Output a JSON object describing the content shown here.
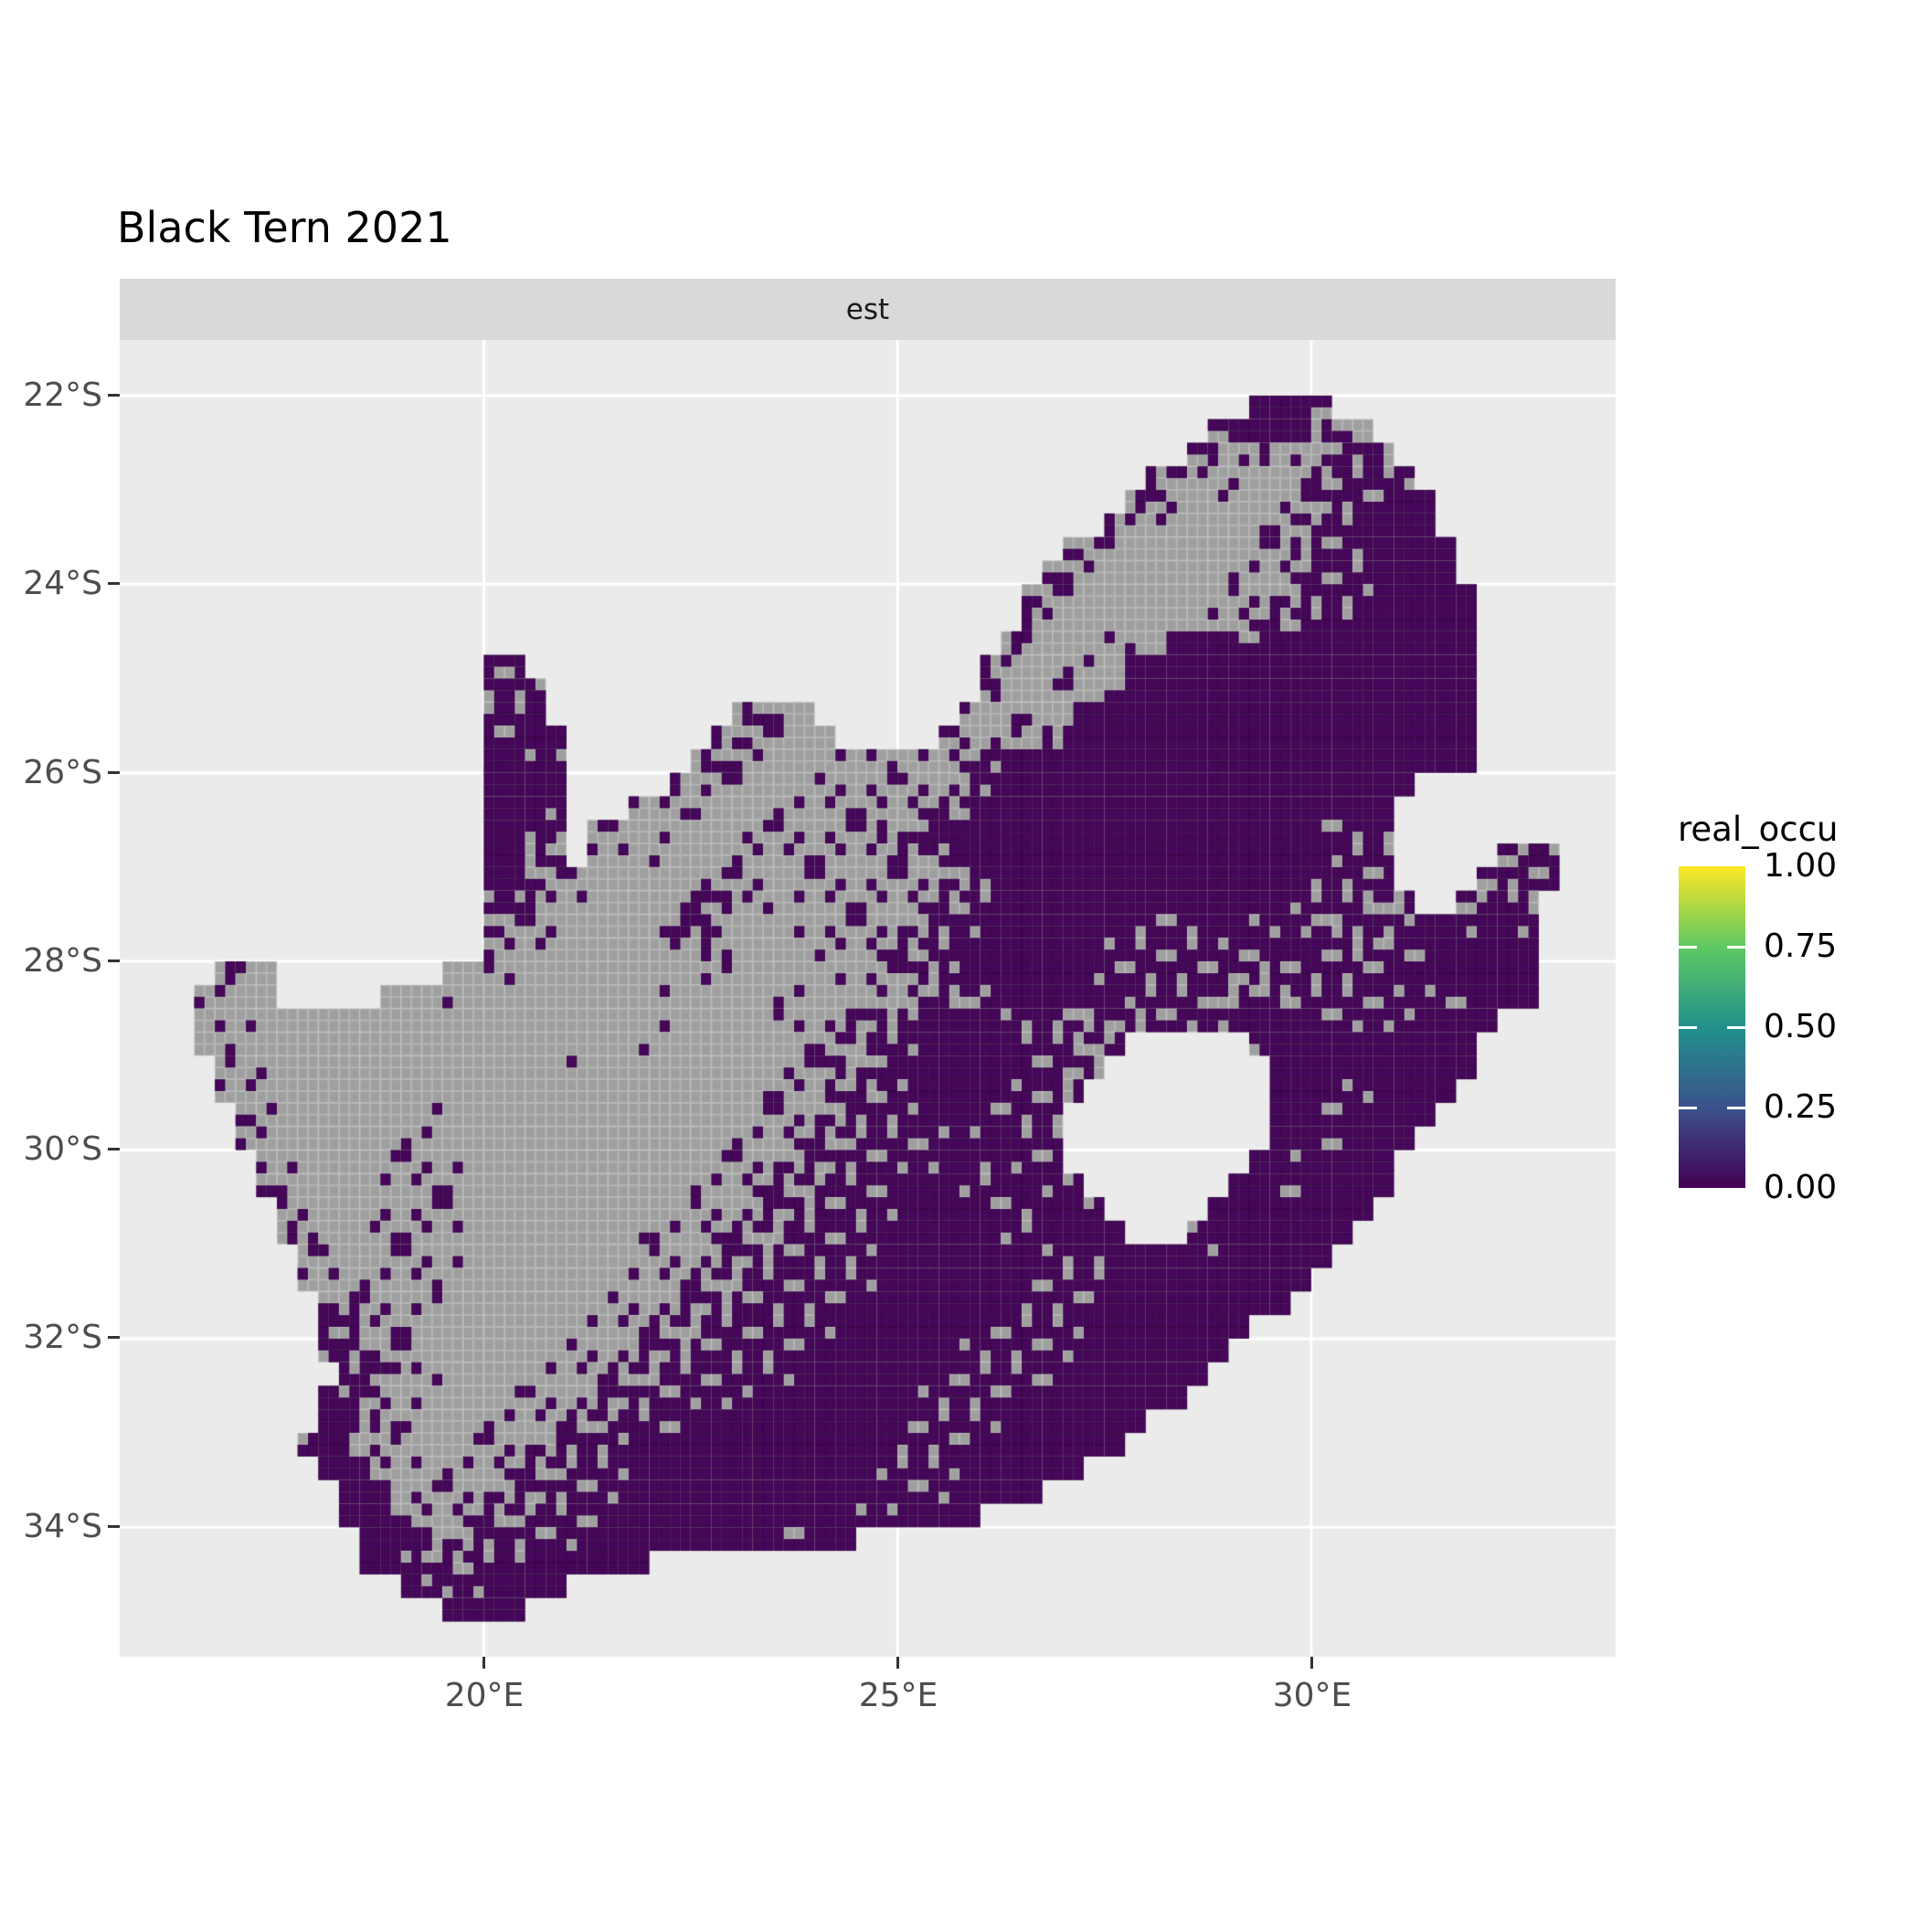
{
  "chart_data": {
    "type": "heatmap",
    "title": "Black Tern 2021",
    "facet_label": "est",
    "axes": {
      "x": {
        "ticks": [
          {
            "label": "20°E",
            "lon": 20
          },
          {
            "label": "25°E",
            "lon": 25
          },
          {
            "label": "30°E",
            "lon": 30
          }
        ]
      },
      "y": {
        "ticks": [
          {
            "label": "22°S",
            "lat": 22
          },
          {
            "label": "24°S",
            "lat": 24
          },
          {
            "label": "26°S",
            "lat": 26
          },
          {
            "label": "28°S",
            "lat": 28
          },
          {
            "label": "30°S",
            "lat": 30
          },
          {
            "label": "32°S",
            "lat": 32
          },
          {
            "label": "34°S",
            "lat": 34
          }
        ]
      }
    },
    "legend": {
      "title": "real_occu",
      "ticks": [
        "1.00",
        "0.75",
        "0.50",
        "0.25",
        "0.00"
      ],
      "colormap": "viridis",
      "range": [
        0,
        1
      ]
    },
    "colors": {
      "panel_bg": "#EBEBEB",
      "strip_bg": "#D9D9D9",
      "grid_line": "#FFFFFF",
      "land_na": "#9F9F9F",
      "land_cell_border": "rgba(255,255,255,0.25)",
      "occupancy_zero": "#46075A",
      "occupancy_cell_border": "rgba(0,0,0,0.16)",
      "axis_text": "#4D4D4D",
      "tick_mark": "#333333",
      "viridis_stops": [
        "#440154",
        "#3B528B",
        "#21918C",
        "#5EC962",
        "#FDE725"
      ]
    },
    "map": {
      "description": "South Africa raster: estimated occupancy. Colored cells = real_occu 0.00 (dark purple); gray = land with no value; Lesotho and Eswatini are holes.",
      "lon_origin": 16.0,
      "lat_origin": 22.0,
      "cell_deg": 0.25,
      "encoding": "per 0.25-deg cell: 0=gray land, 1..4 = number of quarter sub-cells colored purple (occupancy 0.00), water omitted",
      "rows": [
        [
          [
            53,
            "4442"
          ]
        ],
        [
          [
            51,
            "24444220"
          ]
        ],
        [
          [
            50,
            "2212011332"
          ]
        ],
        [
          [
            48,
            "2210100123333"
          ]
        ],
        [
          [
            47,
            "221010011233344"
          ]
        ],
        [
          [
            46,
            "2110000112334444"
          ]
        ],
        [
          [
            44,
            "2110000001123334444"
          ]
        ],
        [
          [
            43,
            "21100000011123334444"
          ]
        ],
        [
          [
            42,
            "2110000000112233344444"
          ]
        ],
        [
          [
            42,
            "2100000001122333444444"
          ]
        ],
        [
          [
            41,
            "21000110444334444444444"
          ]
        ],
        [
          [
            16,
            "33"
          ],
          [
            40,
            "210011044444444444444444"
          ]
        ],
        [
          [
            16,
            "333"
          ],
          [
            40,
            "300110244444444444444444"
          ]
        ],
        [
          [
            16,
            "334"
          ],
          [
            28,
            "2210"
          ],
          [
            39,
            "1011024444444444444444444"
          ]
        ],
        [
          [
            16,
            "3344"
          ],
          [
            27,
            "221100"
          ],
          [
            38,
            "21110244444444444444444444"
          ]
        ],
        [
          [
            16,
            "4433"
          ],
          [
            26,
            "2211000111"
          ],
          [
            36,
            "0112344444444444444444444444"
          ]
        ],
        [
          [
            16,
            "4444"
          ],
          [
            25,
            "21110001111"
          ],
          [
            36,
            "1112344444444444444444444"
          ]
        ],
        [
          [
            16,
            "4443"
          ],
          [
            23,
            "111100011111"
          ],
          [
            35,
            "1122344444444444444444444"
          ]
        ],
        [
          [
            16,
            "4433"
          ],
          [
            21,
            "11010001111"
          ],
          [
            32,
            "1112234444444444444444443333"
          ]
        ],
        [
          [
            16,
            "4422"
          ],
          [
            21,
            "110100011111"
          ],
          [
            33,
            "111223444444444444444444333"
          ],
          [
            65,
            "233"
          ]
        ],
        [
          [
            16,
            "4421100000111101111"
          ],
          [
            35,
            "1112234444444444444443333"
          ],
          [
            64,
            "2333"
          ]
        ],
        [
          [
            16,
            "3321100001331101111"
          ],
          [
            35,
            "1122334444444444444433322"
          ],
          [
            60,
            "2"
          ],
          [
            63,
            "2332"
          ]
        ],
        [
          [
            16,
            "211100001331000111112233444444433334433322333443443"
          ]
        ],
        [
          [
            16,
            "111000000121000011122334444444333333334433223344444"
          ]
        ],
        [
          [
            3,
            "210"
          ],
          [
            14,
            "00"
          ],
          [
            16,
            "110000000011000001112234444443333333223333334444444"
          ]
        ],
        [
          [
            2,
            "1100"
          ],
          [
            11,
            "00010000000001000001100011222344444433332222333333333444"
          ]
        ],
        [
          [
            2,
            "011000000000000000000010000011122234444333222233334444333334444"
          ]
        ],
        [
          [
            2,
            "010000000000000000000100000001122334444433223"
          ],
          [
            53,
            "34444444444"
          ]
        ],
        [
          [
            3,
            "1010000000000000010000000001122234444443322"
          ],
          [
            54,
            "4444444444"
          ]
        ],
        [
          [
            3,
            "110000000000000000000000001112223344443332"
          ],
          [
            54,
            "444334444"
          ]
        ],
        [
          [
            4,
            "2100000001000000000000000111223334443333"
          ],
          [
            54,
            "44334444"
          ]
        ],
        [
          [
            4,
            "1100000011000000000000001112223333334433"
          ],
          [
            54,
            "4433444"
          ]
        ],
        [
          [
            5,
            "110000111100000000000011122233333443333"
          ],
          [
            53,
            "4434444"
          ]
        ],
        [
          [
            5,
            "2100001111000000000001112223333444334433"
          ],
          [
            52,
            "44334444"
          ]
        ],
        [
          [
            6,
            "1100011110000000000011122233334444333443"
          ],
          [
            51,
            "44444444"
          ]
        ],
        [
          [
            6,
            "21001111100000000111122223333444444334444"
          ],
          [
            50,
            "34444444"
          ]
        ],
        [
          [
            7,
            "11001111000000000111222333334444444433344444344444"
          ]
        ],
        [
          [
            7,
            "1101111000000000111222333333444444433334444444444"
          ]
        ],
        [
          [
            8,
            "22111100000000111222333333444444443333444444444"
          ]
        ],
        [
          [
            8,
            "331110000000011122233333344444443333344444444"
          ]
        ],
        [
          [
            8,
            "33211000000011122233333344444443333334444444"
          ]
        ],
        [
          [
            9,
            "332110000011122233333344444443333334444444"
          ]
        ],
        [
          [
            8,
            "432110000111122333333444444443333344444444"
          ]
        ],
        [
          [
            8,
            "4421100011112233334444444444333334444444"
          ]
        ],
        [
          [
            7,
            "3421100011122333444444444444433334444444"
          ]
        ],
        [
          [
            8,
            "4421101112223334444444444443333444444"
          ]
        ],
        [
          [
            9,
            "4421111222333344444444444443334444"
          ]
        ],
        [
          [
            9,
            "4431112223333444444444444334444"
          ]
        ],
        [
          [
            10,
            "444222333334444444443344"
          ]
        ],
        [
          [
            10,
            "44322333444444"
          ]
        ],
        [
          [
            12,
            "43334444"
          ]
        ],
        [
          [
            14,
            "4444"
          ]
        ]
      ]
    }
  }
}
